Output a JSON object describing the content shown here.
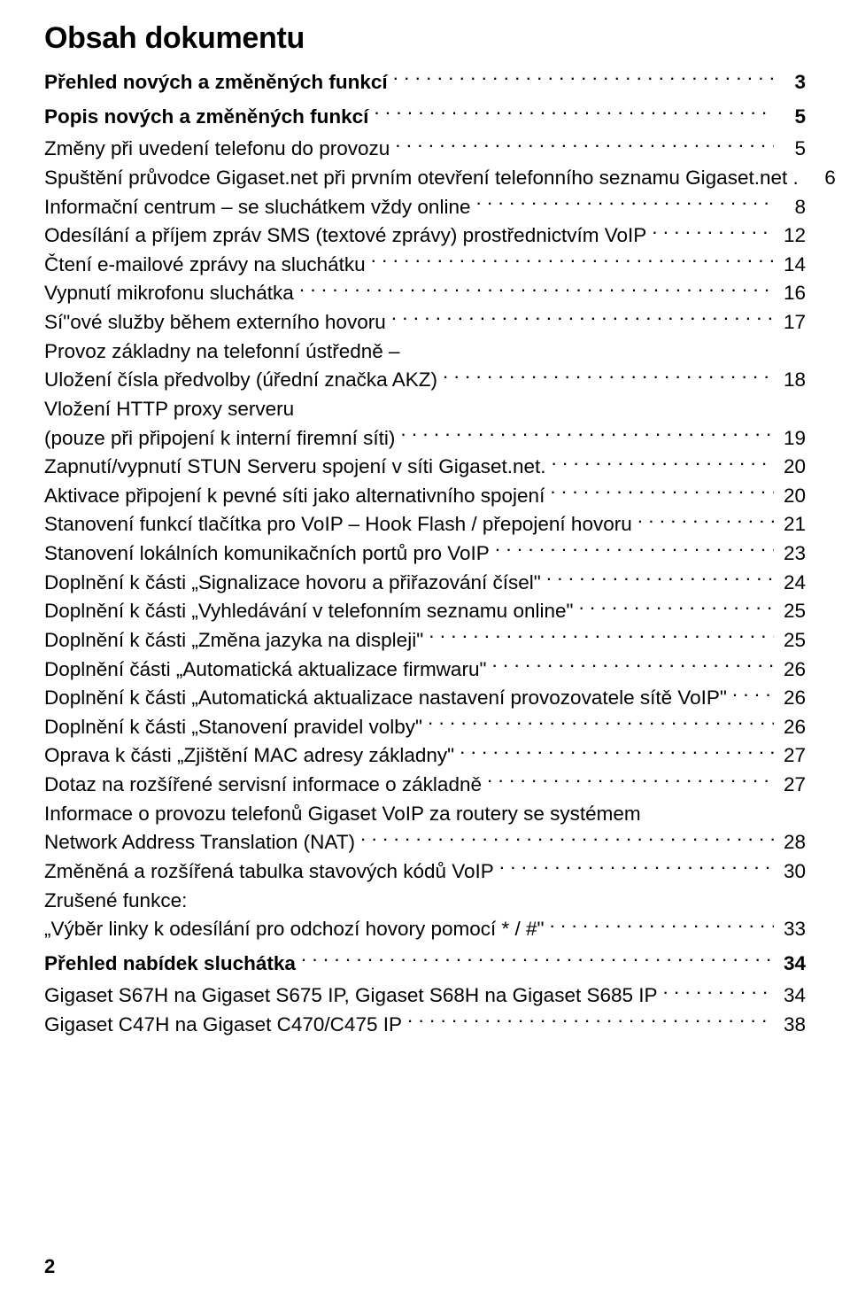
{
  "title": "Obsah dokumentu",
  "entries": [
    {
      "label": "Přehled nových a změněných funkcí",
      "page": "3",
      "bold": true
    },
    {
      "label": "Popis nových a změněných funkcí",
      "page": "5",
      "bold": true
    },
    {
      "label": "Změny při uvedení telefonu do provozu",
      "page": "5"
    },
    {
      "label": "Spuštění průvodce Gigaset.net při prvním otevření telefonního seznamu Gigaset.net .",
      "page": "6"
    },
    {
      "label": "Informační centrum – se sluchátkem vždy online",
      "page": "8"
    },
    {
      "label": "Odesílání a příjem zpráv SMS (textové zprávy) prostřednictvím VoIP",
      "page": "12"
    },
    {
      "label": "Čtení e-mailové zprávy na sluchátku",
      "page": "14"
    },
    {
      "label": "Vypnutí mikrofonu sluchátka",
      "page": "16"
    },
    {
      "label": "Sí\"ové služby během externího hovoru",
      "page": "17"
    },
    {
      "label_cont": "Provoz základny na telefonní ústředně –",
      "label": "Uložení čísla předvolby (úřední značka AKZ)",
      "page": "18"
    },
    {
      "label_cont": "Vložení HTTP proxy serveru",
      "label": "(pouze při připojení k interní firemní síti)",
      "page": "19"
    },
    {
      "label": "Zapnutí/vypnutí STUN Serveru spojení v síti Gigaset.net.",
      "page": "20"
    },
    {
      "label": "Aktivace připojení k pevné síti jako alternativního spojení",
      "page": "20"
    },
    {
      "label": "Stanovení funkcí tlačítka pro VoIP –  Hook Flash / přepojení hovoru",
      "page": "21"
    },
    {
      "label": "Stanovení lokálních komunikačních portů pro VoIP",
      "page": "23"
    },
    {
      "label": "Doplnění k části „Signalizace hovoru a přiřazování čísel\"",
      "page": "24"
    },
    {
      "label": "Doplnění k části „Vyhledávání v telefonním seznamu online\"",
      "page": "25"
    },
    {
      "label": "Doplnění k části „Změna jazyka na displeji\"",
      "page": "25"
    },
    {
      "label": "Doplnění části „Automatická aktualizace firmwaru\"",
      "page": "26"
    },
    {
      "label": "Doplnění k části „Automatická aktualizace nastavení provozovatele sítě VoIP\"",
      "page": "26"
    },
    {
      "label": "Doplnění k části „Stanovení pravidel volby\"",
      "page": "26"
    },
    {
      "label": "Oprava k části „Zjištění MAC adresy základny\"",
      "page": "27"
    },
    {
      "label": "Dotaz na rozšířené servisní informace o základně",
      "page": "27"
    },
    {
      "label_cont": "Informace o provozu telefonů Gigaset VoIP za routery se systémem",
      "label": "Network Address Translation (NAT)",
      "page": "28"
    },
    {
      "label": "Změněná a rozšířená tabulka stavových kódů VoIP",
      "page": "30"
    },
    {
      "label_cont": "Zrušené funkce:",
      "label": "„Výběr linky k odesílání pro odchozí hovory pomocí * / #\"",
      "page": "33"
    },
    {
      "label": "Přehled nabídek sluchátka",
      "page": "34",
      "bold": true
    },
    {
      "label": "Gigaset S67H na Gigaset S675 IP, Gigaset S68H na Gigaset S685 IP",
      "page": "34"
    },
    {
      "label": "Gigaset C47H na Gigaset C470/C475 IP",
      "page": "38"
    }
  ],
  "page_number": "2"
}
